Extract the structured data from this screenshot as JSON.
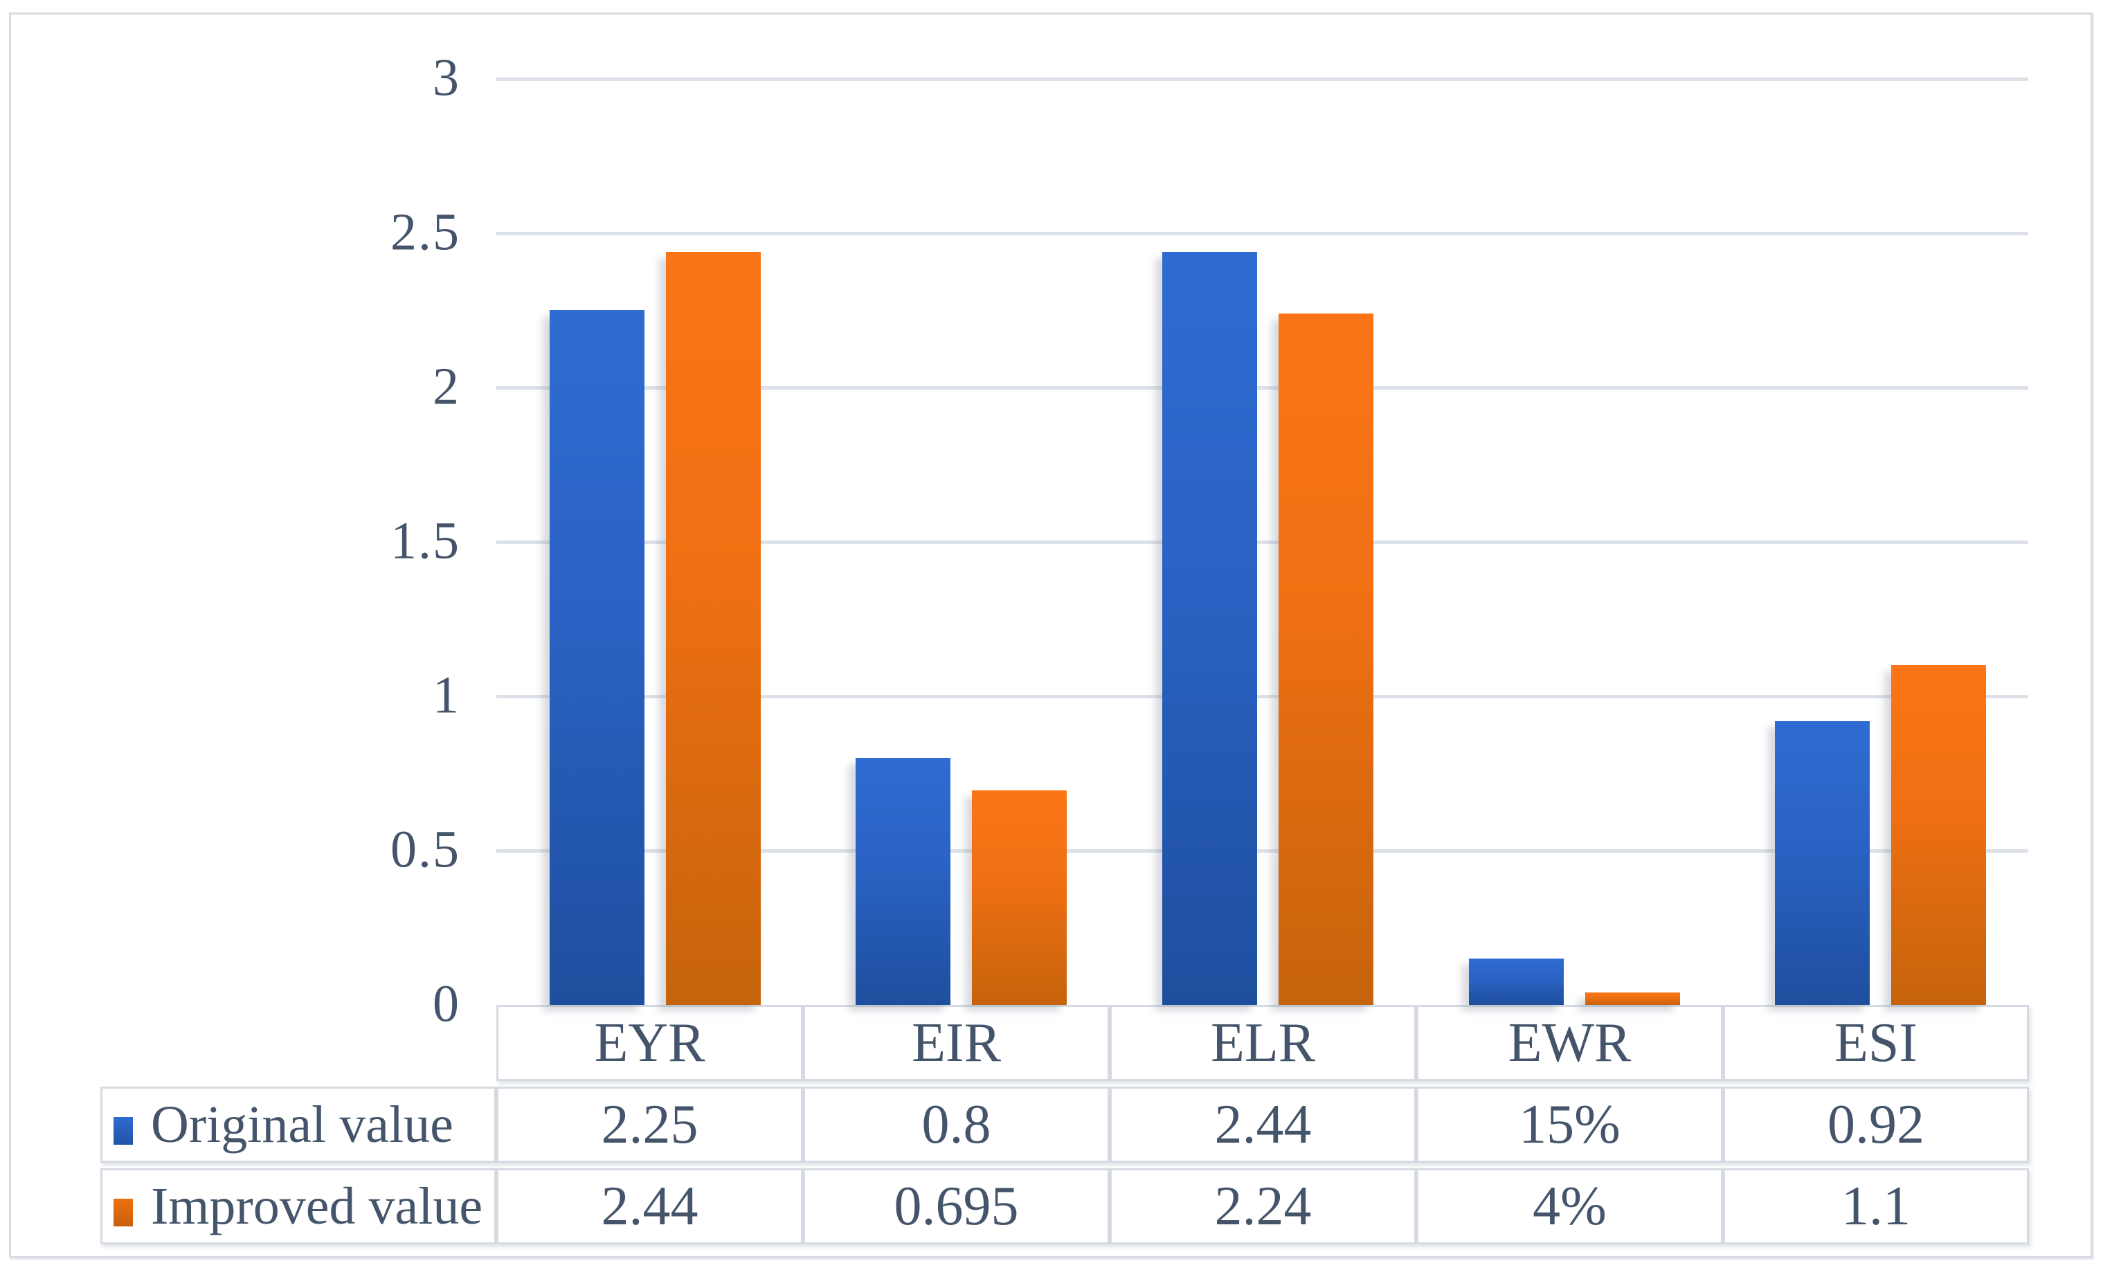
{
  "chart_data": {
    "type": "bar",
    "title": "",
    "categories": [
      "EYR",
      "EIR",
      "ELR",
      "EWR",
      "ESI"
    ],
    "series": [
      {
        "name": "Original value",
        "color_top": "#2f6cd2",
        "color_mid": "#2a62c3",
        "color_bottom": "#1e4f9e",
        "values": [
          2.25,
          0.8,
          2.44,
          0.15,
          0.92
        ],
        "labels": [
          "2.25",
          "0.8",
          "2.44",
          "15%",
          "0.92"
        ]
      },
      {
        "name": "Improved value",
        "color_top": "#fb7517",
        "color_mid": "#ee6f12",
        "color_bottom": "#c5630c",
        "values": [
          2.44,
          0.695,
          2.24,
          0.04,
          1.1
        ],
        "labels": [
          "2.44",
          "0.695",
          "2.24",
          "4%",
          "1.1"
        ]
      }
    ],
    "y_axis": {
      "min": 0,
      "max": 3,
      "tick_step": 0.5,
      "ticks": [
        "0",
        "0.5",
        "1",
        "1.5",
        "2",
        "2.5",
        "3"
      ]
    },
    "grid": true,
    "legend_position": "table-left",
    "gridline_color": "#dce0e7",
    "text_color": "#44546a",
    "border_color": "#d8dbe2"
  }
}
